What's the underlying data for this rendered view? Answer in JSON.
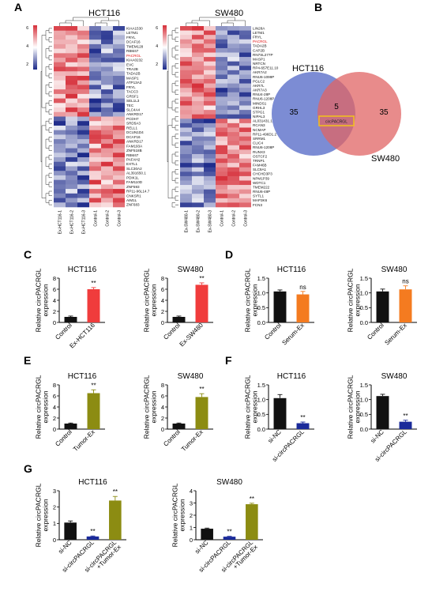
{
  "panel_labels": {
    "a": "A",
    "b": "B",
    "c": "C",
    "d": "D",
    "e": "E",
    "f": "F",
    "g": "G"
  },
  "heatmaps": {
    "hct116": {
      "title": "HCT116",
      "colorbar_ticks": [
        "6",
        "4",
        "2"
      ],
      "genes": [
        "KIAA1530",
        "LETM1",
        "FRYL",
        "DCAF16",
        "TMEM128",
        "RBM47",
        "PACRGL",
        "KIAA0232",
        "EVC",
        "TRA2B",
        "TADA2B",
        "MASP1",
        "ATP13A3",
        "FRYL",
        "TACC3",
        "GRSF1",
        "SEL1L3",
        "TEC",
        "SLC4A4",
        "ANKRD17",
        "PCDH7",
        "SRD5A3",
        "RELL1",
        "DCUN1D4",
        "DCAF16",
        "ANKRD17",
        "FAM193A",
        "ZNF518B",
        "RBM47",
        "PAFAH2",
        "EXTL1",
        "SLC30A2",
        "AL391650.1",
        "PDIK1L",
        "FAM110D",
        "ZNF593",
        "RP11-96L14.7",
        "CNKSR1",
        "AIM1L",
        "ZNF683"
      ],
      "highlight_gene_index": 6,
      "samples": [
        "Ex-HCT116-1",
        "Ex-HCT116-2",
        "Ex-HCT116-3",
        "Control-1",
        "Control-2",
        "Control-3"
      ],
      "colors": {
        "high": "#d6303a",
        "mid": "#ffffff",
        "low": "#1c2a8a"
      }
    },
    "sw480": {
      "title": "SW480",
      "colorbar_ticks": [
        "6",
        "4",
        "2"
      ],
      "genes": [
        "LIN28A",
        "LETM1",
        "FRYL",
        "PACRGL",
        "TADA2B",
        "CAP2B",
        "RN7SL277P",
        "MASP1",
        "NRTCN",
        "RP4-657E11.10",
        "AKR7A2",
        "RNU6-1099P",
        "PGLC2",
        "AKR7L",
        "AKR7A3",
        "RNU4-28P",
        "RNU6-1208P",
        "MINDS1",
        "GRHL3",
        "STPG1",
        "NIPAL3",
        "AL031431.1",
        "RCAN3",
        "NCMAP",
        "RP11-496D1.2",
        "SRRM1",
        "CLIC4",
        "RNU6-1208P",
        "RUNX3",
        "OSTCF2",
        "TRNP1",
        "FAM46B",
        "SLC9A1",
        "CHCHD3P3",
        "NPM1P39",
        "WDTC1",
        "TMEM222",
        "RNU6-48P",
        "SYTL1",
        "MAP3K6",
        "FCN3"
      ],
      "highlight_gene_index": 3,
      "samples": [
        "Ex-SW480-1",
        "Ex-SW480-2",
        "Ex-SW480-3",
        "Control-1",
        "Control-2",
        "Control-3"
      ],
      "colors": {
        "high": "#d6303a",
        "mid": "#ffffff",
        "low": "#1c2a8a"
      }
    }
  },
  "venn": {
    "left_label": "HCT116",
    "right_label": "SW480",
    "left_only": "35",
    "overlap": "5",
    "right_only": "35",
    "highlight": "circPACRGL",
    "colors": {
      "left": "#5b6fc9",
      "right": "#e06464",
      "box": "#f2c21a"
    }
  },
  "ylabel": "Relative circPACRGL expression",
  "chart_data": [
    {
      "panel": "C",
      "title": "HCT116",
      "type": "bar",
      "categories": [
        "Control",
        "Ex-HCT116"
      ],
      "values": [
        1.0,
        6.0
      ],
      "errors": [
        0.15,
        0.3
      ],
      "colors": [
        "#111111",
        "#f03c3c"
      ],
      "sig": [
        "",
        "**"
      ],
      "ylim": [
        0,
        8
      ],
      "yticks": [
        0,
        2,
        4,
        6,
        8
      ]
    },
    {
      "panel": "C",
      "title": "SW480",
      "type": "bar",
      "categories": [
        "Control",
        "Ex-SW480"
      ],
      "values": [
        1.0,
        6.8
      ],
      "errors": [
        0.15,
        0.35
      ],
      "colors": [
        "#111111",
        "#f03c3c"
      ],
      "sig": [
        "",
        "**"
      ],
      "ylim": [
        0,
        8
      ],
      "yticks": [
        0,
        2,
        4,
        6,
        8
      ]
    },
    {
      "panel": "D",
      "title": "HCT116",
      "type": "bar",
      "categories": [
        "Control",
        "Serum-Ex"
      ],
      "values": [
        1.05,
        0.95
      ],
      "errors": [
        0.05,
        0.1
      ],
      "colors": [
        "#111111",
        "#f47b20"
      ],
      "sig": [
        "",
        "ns"
      ],
      "ylim": [
        0,
        1.5
      ],
      "yticks": [
        0.0,
        0.5,
        1.0,
        1.5
      ]
    },
    {
      "panel": "D",
      "title": "SW480",
      "type": "bar",
      "categories": [
        "Control",
        "Serum-Ex"
      ],
      "values": [
        1.05,
        1.12
      ],
      "errors": [
        0.08,
        0.12
      ],
      "colors": [
        "#111111",
        "#f47b20"
      ],
      "sig": [
        "",
        "ns"
      ],
      "ylim": [
        0,
        1.5
      ],
      "yticks": [
        0.0,
        0.5,
        1.0,
        1.5
      ]
    },
    {
      "panel": "E",
      "title": "HCT116",
      "type": "bar",
      "categories": [
        "Control",
        "Tumor-Ex"
      ],
      "values": [
        1.0,
        6.5
      ],
      "errors": [
        0.1,
        0.6
      ],
      "colors": [
        "#111111",
        "#8c8c12"
      ],
      "sig": [
        "",
        "**"
      ],
      "ylim": [
        0,
        8
      ],
      "yticks": [
        0,
        2,
        4,
        6,
        8
      ]
    },
    {
      "panel": "E",
      "title": "SW480",
      "type": "bar",
      "categories": [
        "Control",
        "Tumor-Ex"
      ],
      "values": [
        1.0,
        5.8
      ],
      "errors": [
        0.1,
        0.6
      ],
      "colors": [
        "#111111",
        "#8c8c12"
      ],
      "sig": [
        "",
        "**"
      ],
      "ylim": [
        0,
        8
      ],
      "yticks": [
        0,
        2,
        4,
        6,
        8
      ]
    },
    {
      "panel": "F",
      "title": "HCT116",
      "type": "bar",
      "categories": [
        "si-NC",
        "si-circPACRGL"
      ],
      "values": [
        1.05,
        0.2
      ],
      "errors": [
        0.12,
        0.04
      ],
      "colors": [
        "#111111",
        "#1a2a9a"
      ],
      "sig": [
        "",
        "**"
      ],
      "ylim": [
        0,
        1.5
      ],
      "yticks": [
        0.0,
        0.5,
        1.0,
        1.5
      ]
    },
    {
      "panel": "F",
      "title": "SW480",
      "type": "bar",
      "categories": [
        "si-NC",
        "si-circPACRGL"
      ],
      "values": [
        1.12,
        0.25
      ],
      "errors": [
        0.06,
        0.05
      ],
      "colors": [
        "#111111",
        "#1a2a9a"
      ],
      "sig": [
        "",
        "**"
      ],
      "ylim": [
        0,
        1.5
      ],
      "yticks": [
        0.0,
        0.5,
        1.0,
        1.5
      ]
    },
    {
      "panel": "G",
      "title": "HCT116",
      "type": "bar",
      "categories": [
        "si-NC",
        "si-circPACRGL",
        "si-circPACRGL +Tumor-Ex"
      ],
      "values": [
        1.05,
        0.2,
        2.4
      ],
      "errors": [
        0.1,
        0.03,
        0.25
      ],
      "colors": [
        "#111111",
        "#1a2a9a",
        "#8c8c12"
      ],
      "sig": [
        "",
        "**",
        "**"
      ],
      "ylim": [
        0,
        3
      ],
      "yticks": [
        0,
        1,
        2,
        3
      ]
    },
    {
      "panel": "G",
      "title": "SW480",
      "type": "bar",
      "categories": [
        "si-NC",
        "si-circPACRGL",
        "si-circPACRGL +Tumor-Ex"
      ],
      "values": [
        0.9,
        0.25,
        2.9
      ],
      "errors": [
        0.05,
        0.03,
        0.08
      ],
      "colors": [
        "#111111",
        "#1a2a9a",
        "#8c8c12"
      ],
      "sig": [
        "",
        "**",
        "**"
      ],
      "ylim": [
        0,
        4
      ],
      "yticks": [
        0,
        1,
        2,
        3,
        4
      ]
    }
  ]
}
